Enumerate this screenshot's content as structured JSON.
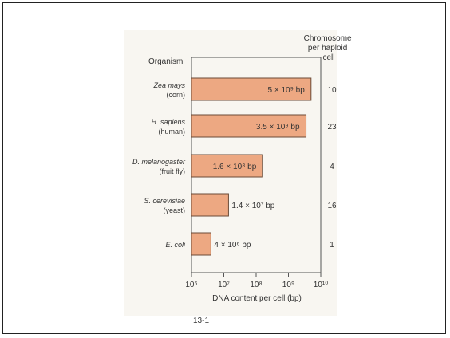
{
  "chart_data": {
    "type": "bar",
    "orientation": "horizontal",
    "x_scale": "log",
    "xlim": [
      1000000.0,
      10000000000.0
    ],
    "xlabel": "DNA content per cell (bp)",
    "category_header": "Organism",
    "extra_column_header": "Chromosome per haploid cell",
    "bar_color": "#eda882",
    "bar_stroke": "#6b4a36",
    "categories": [
      {
        "name": "Zea mays",
        "common": "(corn)",
        "value": 5000000000.0,
        "value_label": "5 × 10⁹ bp",
        "chromosomes": "10"
      },
      {
        "name": "H. sapiens",
        "common": "(human)",
        "value": 3500000000.0,
        "value_label": "3.5 × 10⁹ bp",
        "chromosomes": "23"
      },
      {
        "name": "D. melanogaster",
        "common": "(fruit fly)",
        "value": 160000000.0,
        "value_label": "1.6 × 10⁸ bp",
        "chromosomes": "4"
      },
      {
        "name": "S. cerevisiae",
        "common": "(yeast)",
        "value": 14000000.0,
        "value_label": "1.4 × 10⁷ bp",
        "chromosomes": "16"
      },
      {
        "name": "E. coli",
        "common": "",
        "value": 4000000.0,
        "value_label": "4 × 10⁶ bp",
        "chromosomes": "1"
      }
    ],
    "x_ticks": [
      "10⁶",
      "10⁷",
      "10⁸",
      "10⁹",
      "10¹⁰"
    ],
    "caption_fragment": "13-1"
  }
}
